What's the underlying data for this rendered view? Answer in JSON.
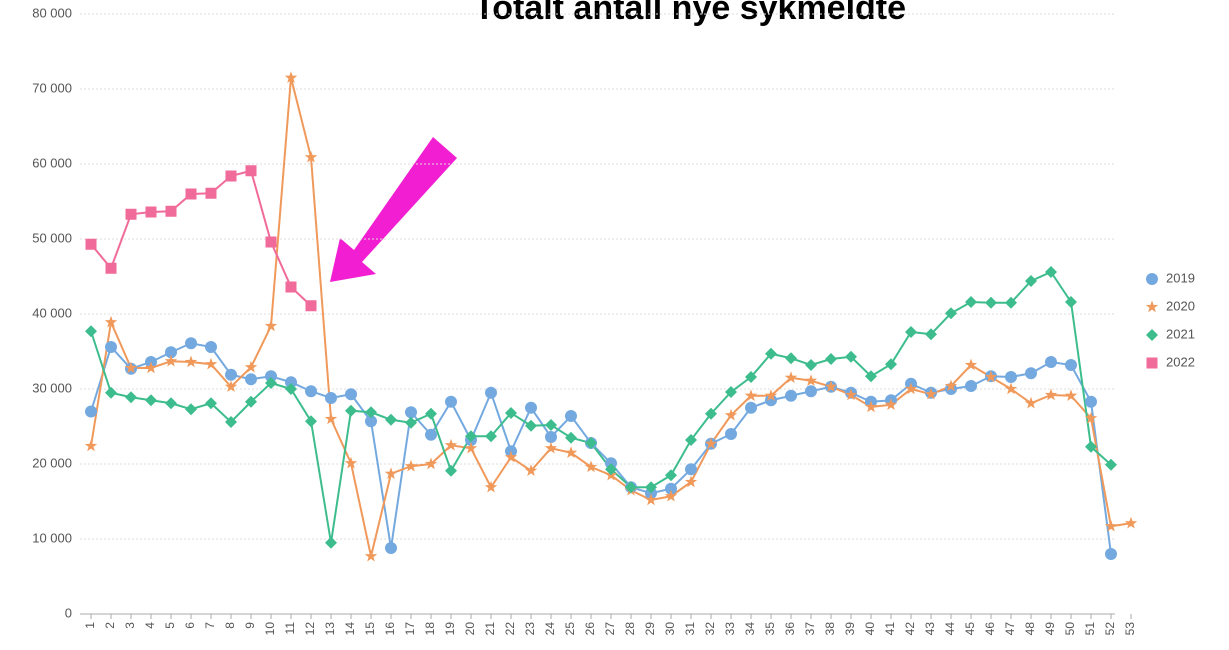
{
  "chart_data": {
    "type": "line",
    "title": "Totalt antall nye sykmeldte",
    "categories": [
      "1",
      "2",
      "3",
      "4",
      "5",
      "6",
      "7",
      "8",
      "9",
      "10",
      "11",
      "12",
      "13",
      "14",
      "15",
      "16",
      "17",
      "18",
      "19",
      "20",
      "21",
      "22",
      "23",
      "24",
      "25",
      "26",
      "27",
      "28",
      "29",
      "30",
      "31",
      "32",
      "33",
      "34",
      "35",
      "36",
      "37",
      "38",
      "39",
      "40",
      "41",
      "42",
      "43",
      "44",
      "45",
      "46",
      "47",
      "48",
      "49",
      "50",
      "51",
      "52",
      "53"
    ],
    "series": [
      {
        "name": "2019",
        "color": "#74a9e0",
        "marker": "circle",
        "values": [
          27000,
          35600,
          32700,
          33600,
          34900,
          36100,
          35600,
          31900,
          31300,
          31700,
          30900,
          29700,
          28800,
          29300,
          25700,
          8800,
          26900,
          23900,
          28300,
          23200,
          29500,
          21700,
          27500,
          23600,
          26400,
          22800,
          20100,
          16900,
          16100,
          16700,
          19300,
          22700,
          24000,
          27500,
          28500,
          29100,
          29700,
          30300,
          29500,
          28300,
          28500,
          30700,
          29500,
          30000,
          30400,
          31700,
          31600,
          32100,
          33600,
          33200,
          28300,
          8000,
          null
        ]
      },
      {
        "name": "2020",
        "color": "#f0995a",
        "marker": "star",
        "values": [
          22400,
          38900,
          32800,
          32800,
          33700,
          33600,
          33300,
          30300,
          32900,
          38400,
          71500,
          60900,
          26000,
          20100,
          7700,
          18700,
          19700,
          20000,
          22500,
          22100,
          16900,
          20900,
          19100,
          22100,
          21500,
          19600,
          18500,
          16500,
          15200,
          15700,
          17600,
          22700,
          26500,
          29100,
          29100,
          31500,
          31100,
          30300,
          29200,
          27600,
          27900,
          30000,
          29300,
          30400,
          33200,
          31600,
          30000,
          28100,
          29200,
          29100,
          26100,
          11700,
          12100
        ]
      },
      {
        "name": "2021",
        "color": "#3dbd8d",
        "marker": "diamond",
        "values": [
          37700,
          29500,
          28900,
          28500,
          28100,
          27300,
          28100,
          25600,
          28300,
          30800,
          30000,
          25700,
          9500,
          27100,
          26900,
          25900,
          25500,
          26700,
          19100,
          23700,
          23700,
          26800,
          25100,
          25200,
          23500,
          22800,
          19300,
          16900,
          16900,
          18500,
          23200,
          26700,
          29600,
          31600,
          34700,
          34100,
          33200,
          34000,
          34300,
          31700,
          33300,
          37600,
          37300,
          40100,
          41600,
          41500,
          41500,
          44400,
          45600,
          41600,
          22300,
          19900,
          null
        ]
      },
      {
        "name": "2022",
        "color": "#f06a9a",
        "marker": "square",
        "values": [
          49300,
          46100,
          53300,
          53600,
          53700,
          56000,
          56100,
          58400,
          59100,
          49600,
          43600,
          41100,
          null,
          null,
          null,
          null,
          null,
          null,
          null,
          null,
          null,
          null,
          null,
          null,
          null,
          null,
          null,
          null,
          null,
          null,
          null,
          null,
          null,
          null,
          null,
          null,
          null,
          null,
          null,
          null,
          null,
          null,
          null,
          null,
          null,
          null,
          null,
          null,
          null,
          null,
          null,
          null,
          null
        ]
      }
    ],
    "ylim": [
      0,
      80000
    ],
    "yticks": [
      0,
      {
        "value": 10000,
        "label": "10 000"
      },
      {
        "value": 20000,
        "label": "20 000"
      },
      {
        "value": 30000,
        "label": "30 000"
      },
      {
        "value": 40000,
        "label": "40 000"
      },
      {
        "value": 50000,
        "label": "50 000"
      },
      {
        "value": 60000,
        "label": "60 000"
      },
      {
        "value": 70000,
        "label": "70 000"
      },
      {
        "value": 80000,
        "label": "80 000"
      }
    ],
    "grid": true,
    "legend": "right"
  }
}
